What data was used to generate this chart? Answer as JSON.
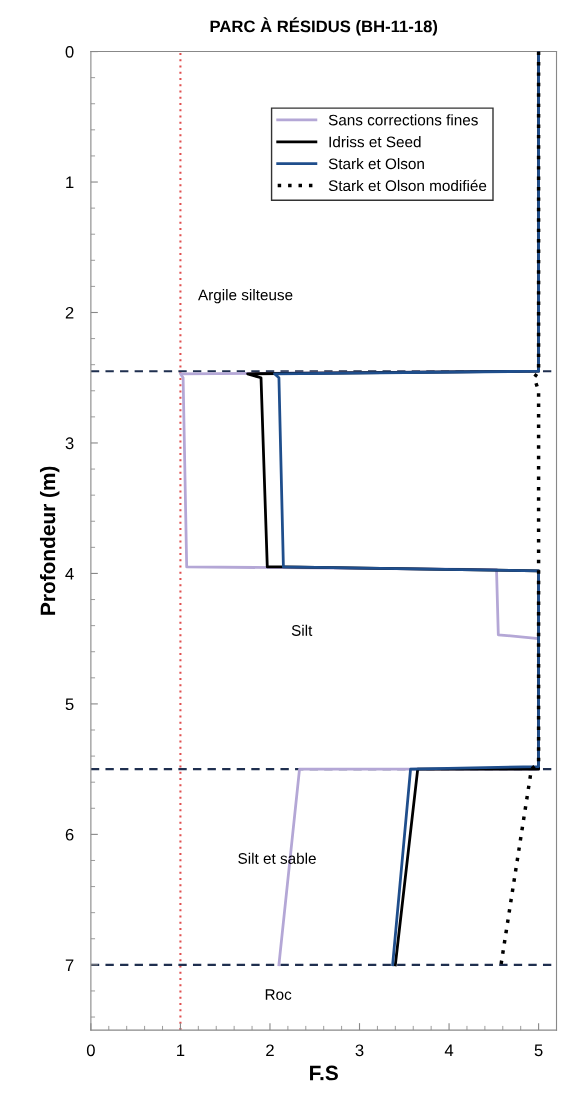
{
  "chart_data": {
    "type": "line",
    "title": "PARC À RÉSIDUS (BH-11-18)",
    "xlabel": "F.S",
    "ylabel": "Profondeur (m)",
    "xlim": [
      0,
      5.2
    ],
    "xticks": [
      0,
      1,
      2,
      3,
      4,
      5
    ],
    "ylim": [
      7.5,
      0
    ],
    "yticks": [
      0,
      1,
      2,
      3,
      4,
      5,
      6,
      7
    ],
    "grid": false,
    "legend": "top right",
    "marker": "none",
    "series": [
      {
        "name": "Sans corrections fines",
        "color": "#b4a7d6",
        "line_style": "solid",
        "x": [
          5,
          5,
          1.0,
          1.03,
          1.07,
          4.53,
          4.55,
          5,
          5,
          2.33,
          2.1
        ],
        "values": [
          0,
          2.45,
          2.47,
          2.5,
          3.95,
          3.97,
          4.47,
          4.5,
          5.5,
          5.5,
          7.0
        ]
      },
      {
        "name": "Idriss et Seed",
        "color": "#000000",
        "line_style": "solid",
        "x": [
          5,
          5,
          1.75,
          1.9,
          1.97,
          2.15,
          5,
          5,
          3.65,
          3.4
        ],
        "values": [
          0,
          2.45,
          2.47,
          2.5,
          3.95,
          3.95,
          3.98,
          5.5,
          5.5,
          7.0
        ]
      },
      {
        "name": "Stark et Olson",
        "color": "#1f4e8c",
        "line_style": "solid",
        "x": [
          5,
          5,
          2.05,
          2.1,
          2.15,
          5,
          5,
          3.57,
          3.37
        ],
        "values": [
          0,
          2.45,
          2.47,
          2.5,
          3.95,
          3.98,
          5.48,
          5.5,
          7.0
        ]
      },
      {
        "name": "Stark et Olson modifiée",
        "color": "#000000",
        "line_style": "dotted",
        "x": [
          5,
          5,
          4.95,
          5.0,
          5.0,
          4.92,
          4.58
        ],
        "values": [
          0,
          2.45,
          2.5,
          2.6,
          5.45,
          5.5,
          7.0
        ]
      }
    ],
    "ref_lines": [
      {
        "axis": "x",
        "value": 1,
        "color": "#e05050",
        "line_style": "dotted"
      },
      {
        "axis": "y",
        "value": 2.45,
        "color": "#1f2f4f",
        "line_style": "dashed"
      },
      {
        "axis": "y",
        "value": 5.5,
        "color": "#1f2f4f",
        "line_style": "dashed"
      },
      {
        "axis": "y",
        "value": 7.0,
        "color": "#1f2f4f",
        "line_style": "dashed"
      }
    ],
    "annotations": [
      "Argile silteuse",
      "Silt",
      "Silt et sable",
      "Roc"
    ]
  }
}
